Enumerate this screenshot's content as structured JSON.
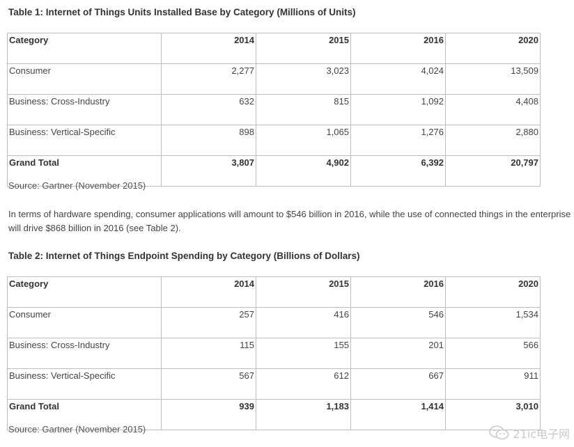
{
  "table1": {
    "title": "Table 1: Internet of Things Units Installed Base by Category (Millions of Units)",
    "headers": [
      "Category",
      "2014",
      "2015",
      "2016",
      "2020"
    ],
    "rows": [
      [
        "Consumer",
        "2,277",
        "3,023",
        "4,024",
        "13,509"
      ],
      [
        "Business: Cross-Industry",
        "632",
        "815",
        "1,092",
        "4,408"
      ],
      [
        "Business: Vertical-Specific",
        "898",
        "1,065",
        "1,276",
        "2,880"
      ]
    ],
    "total": [
      "Grand Total",
      "3,807",
      "4,902",
      "6,392",
      "20,797"
    ],
    "source": "Source: Gartner (November 2015)"
  },
  "paragraph": "In terms of hardware spending, consumer applications will amount to $546 billion in 2016, while the use of connected things in the enterprise will drive $868 billion in 2016 (see Table 2).",
  "table2": {
    "title": "Table 2: Internet of Things Endpoint Spending by Category (Billions of Dollars)",
    "headers": [
      "Category",
      "2014",
      "2015",
      "2016",
      "2020"
    ],
    "rows": [
      [
        "Consumer",
        "257",
        "416",
        "546",
        "1,534"
      ],
      [
        "Business: Cross-Industry",
        "115",
        "155",
        "201",
        "566"
      ],
      [
        "Business: Vertical-Specific",
        "567",
        "612",
        "667",
        "911"
      ]
    ],
    "total": [
      "Grand Total",
      "939",
      "1,183",
      "1,414",
      "3,010"
    ],
    "source": "Source: Gartner (November 2015)"
  },
  "watermark": {
    "text": "21ic电子网",
    "icon": "wechat-icon"
  }
}
